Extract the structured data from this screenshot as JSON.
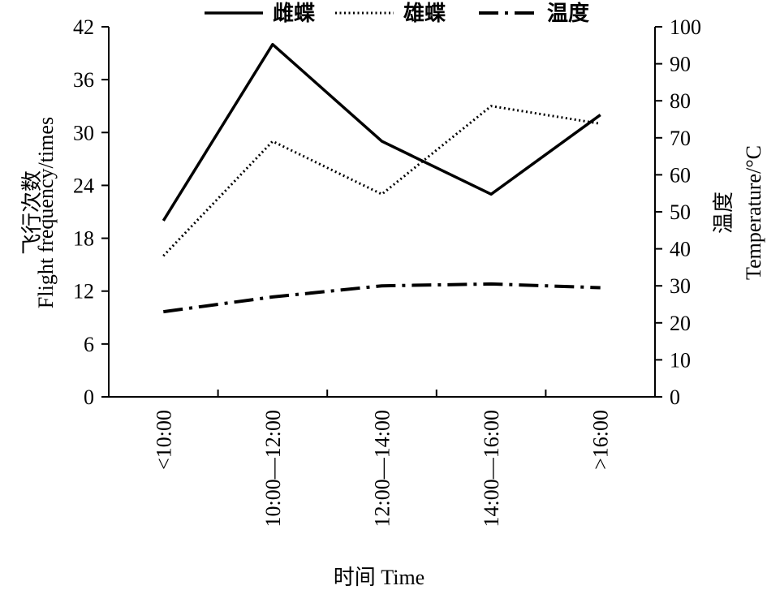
{
  "chart_data": {
    "type": "line",
    "categories": [
      "<10:00",
      "10:00—12:00",
      "12:00—14:00",
      "14:00—16:00",
      ">16:00"
    ],
    "xlabel": "时间 Time",
    "ylabel_left": [
      "飞行次数",
      "Flight frequency/times"
    ],
    "ylabel_right": [
      "温度",
      "Temperature/°C"
    ],
    "ylim_left": [
      0,
      42
    ],
    "yticks_left": [
      0,
      6,
      12,
      18,
      24,
      30,
      36,
      42
    ],
    "ylim_right": [
      0,
      100
    ],
    "yticks_right": [
      0,
      10,
      20,
      30,
      40,
      50,
      60,
      70,
      80,
      90,
      100
    ],
    "grid": false,
    "legend_position": "top",
    "series": [
      {
        "name": "雌蝶",
        "axis": "left",
        "style": "solid",
        "values": [
          20,
          40,
          29,
          23,
          32
        ]
      },
      {
        "name": "雄蝶",
        "axis": "left",
        "style": "dotted",
        "values": [
          16,
          29,
          23,
          33,
          31
        ]
      },
      {
        "name": "温度",
        "axis": "right",
        "style": "dashdot",
        "values": [
          23,
          27,
          30,
          30.5,
          29.5
        ]
      }
    ]
  }
}
